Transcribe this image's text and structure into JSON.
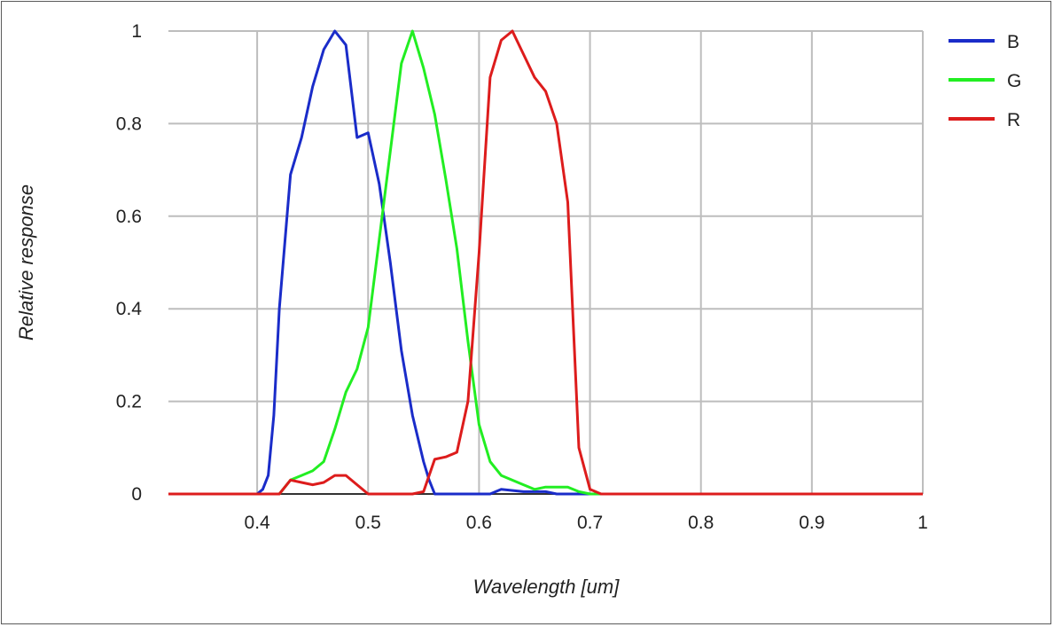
{
  "chart_data": {
    "type": "line",
    "title": "",
    "xlabel": "Wavelength [um]",
    "ylabel": "Relative response",
    "xlim": [
      0.32,
      1.0
    ],
    "ylim": [
      0,
      1
    ],
    "x_ticks": [
      "0.4",
      "0.5",
      "0.6",
      "0.7",
      "0.8",
      "0.9",
      "1"
    ],
    "x_tick_values": [
      0.4,
      0.5,
      0.6,
      0.7,
      0.8,
      0.9,
      1.0
    ],
    "y_ticks": [
      "0",
      "0.2",
      "0.4",
      "0.6",
      "0.8",
      "1"
    ],
    "y_tick_values": [
      0,
      0.2,
      0.4,
      0.6,
      0.8,
      1.0
    ],
    "grid": true,
    "legend_position": "top-right",
    "series": [
      {
        "name": "B",
        "color": "#1a2cc9",
        "points": [
          [
            0.32,
            0
          ],
          [
            0.4,
            0
          ],
          [
            0.405,
            0.01
          ],
          [
            0.41,
            0.04
          ],
          [
            0.415,
            0.17
          ],
          [
            0.42,
            0.4
          ],
          [
            0.43,
            0.69
          ],
          [
            0.44,
            0.77
          ],
          [
            0.45,
            0.88
          ],
          [
            0.46,
            0.96
          ],
          [
            0.47,
            1.0
          ],
          [
            0.48,
            0.97
          ],
          [
            0.49,
            0.77
          ],
          [
            0.5,
            0.78
          ],
          [
            0.51,
            0.67
          ],
          [
            0.52,
            0.5
          ],
          [
            0.53,
            0.31
          ],
          [
            0.54,
            0.17
          ],
          [
            0.55,
            0.07
          ],
          [
            0.555,
            0.03
          ],
          [
            0.56,
            0
          ],
          [
            0.61,
            0
          ],
          [
            0.62,
            0.01
          ],
          [
            0.64,
            0.005
          ],
          [
            0.66,
            0.005
          ],
          [
            0.67,
            0
          ],
          [
            1.0,
            0
          ]
        ]
      },
      {
        "name": "G",
        "color": "#22ee22",
        "points": [
          [
            0.32,
            0
          ],
          [
            0.42,
            0
          ],
          [
            0.43,
            0.03
          ],
          [
            0.44,
            0.04
          ],
          [
            0.45,
            0.05
          ],
          [
            0.46,
            0.07
          ],
          [
            0.47,
            0.14
          ],
          [
            0.48,
            0.22
          ],
          [
            0.49,
            0.27
          ],
          [
            0.5,
            0.36
          ],
          [
            0.51,
            0.55
          ],
          [
            0.52,
            0.74
          ],
          [
            0.53,
            0.93
          ],
          [
            0.54,
            1.0
          ],
          [
            0.55,
            0.92
          ],
          [
            0.56,
            0.82
          ],
          [
            0.57,
            0.68
          ],
          [
            0.58,
            0.53
          ],
          [
            0.59,
            0.33
          ],
          [
            0.6,
            0.15
          ],
          [
            0.61,
            0.07
          ],
          [
            0.62,
            0.04
          ],
          [
            0.64,
            0.02
          ],
          [
            0.65,
            0.01
          ],
          [
            0.66,
            0.015
          ],
          [
            0.68,
            0.015
          ],
          [
            0.69,
            0.005
          ],
          [
            0.7,
            0
          ],
          [
            1.0,
            0
          ]
        ]
      },
      {
        "name": "R",
        "color": "#dd1c1c",
        "points": [
          [
            0.32,
            0
          ],
          [
            0.42,
            0
          ],
          [
            0.43,
            0.03
          ],
          [
            0.44,
            0.025
          ],
          [
            0.45,
            0.02
          ],
          [
            0.46,
            0.025
          ],
          [
            0.47,
            0.04
          ],
          [
            0.48,
            0.04
          ],
          [
            0.49,
            0.02
          ],
          [
            0.5,
            0
          ],
          [
            0.54,
            0
          ],
          [
            0.55,
            0.005
          ],
          [
            0.56,
            0.075
          ],
          [
            0.57,
            0.08
          ],
          [
            0.58,
            0.09
          ],
          [
            0.59,
            0.2
          ],
          [
            0.6,
            0.52
          ],
          [
            0.61,
            0.9
          ],
          [
            0.62,
            0.98
          ],
          [
            0.63,
            1.0
          ],
          [
            0.64,
            0.95
          ],
          [
            0.65,
            0.9
          ],
          [
            0.66,
            0.87
          ],
          [
            0.67,
            0.8
          ],
          [
            0.68,
            0.63
          ],
          [
            0.69,
            0.1
          ],
          [
            0.7,
            0.01
          ],
          [
            0.71,
            0
          ],
          [
            1.0,
            0
          ]
        ]
      }
    ]
  }
}
